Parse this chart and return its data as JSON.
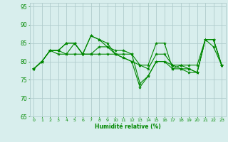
{
  "xlabel": "Humidité relative (%)",
  "xlim": [
    -0.5,
    23.5
  ],
  "ylim": [
    65,
    96
  ],
  "yticks": [
    65,
    70,
    75,
    80,
    85,
    90,
    95
  ],
  "xticks": [
    0,
    1,
    2,
    3,
    4,
    5,
    6,
    7,
    8,
    9,
    10,
    11,
    12,
    13,
    14,
    15,
    16,
    17,
    18,
    19,
    20,
    21,
    22,
    23
  ],
  "background_color": "#d8eeed",
  "grid_color": "#b0cccc",
  "line_color": "#008800",
  "tick_color": "#008800",
  "lines": [
    [
      78,
      80,
      83,
      83,
      85,
      85,
      82,
      87,
      86,
      84,
      83,
      83,
      82,
      79,
      79,
      85,
      85,
      78,
      78,
      78,
      77,
      86,
      84,
      79
    ],
    [
      78,
      80,
      83,
      82,
      82,
      82,
      82,
      82,
      82,
      82,
      82,
      81,
      80,
      79,
      78,
      82,
      82,
      79,
      79,
      79,
      79,
      86,
      86,
      79
    ],
    [
      78,
      80,
      83,
      83,
      82,
      85,
      82,
      82,
      84,
      84,
      82,
      81,
      80,
      73,
      76,
      80,
      80,
      79,
      78,
      77,
      77,
      86,
      86,
      79
    ],
    [
      78,
      80,
      83,
      83,
      85,
      85,
      82,
      87,
      86,
      85,
      82,
      82,
      82,
      74,
      76,
      80,
      80,
      78,
      79,
      78,
      77,
      86,
      86,
      79
    ]
  ]
}
